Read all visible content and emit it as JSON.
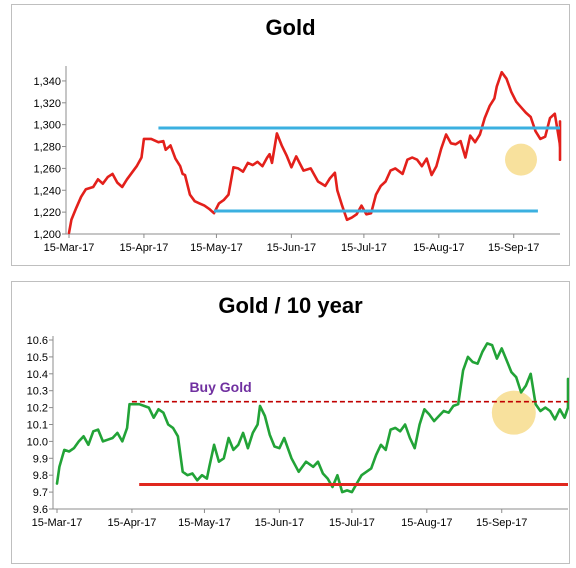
{
  "chart_data": [
    {
      "type": "line",
      "title": "Gold",
      "xlabel": "",
      "ylabel": "",
      "ylim": [
        1200,
        1350
      ],
      "yticks": [
        1200,
        1220,
        1240,
        1260,
        1280,
        1300,
        1320,
        1340
      ],
      "ytick_labels": [
        "1,200",
        "1,220",
        "1,240",
        "1,260",
        "1,280",
        "1,300",
        "1,320",
        "1,340"
      ],
      "x_start": "15-Mar-17",
      "x_end": "30-Sep-17",
      "xtick_labels": [
        "15-Mar-17",
        "15-Apr-17",
        "15-May-17",
        "15-Jun-17",
        "15-Jul-17",
        "15-Aug-17",
        "15-Sep-17"
      ],
      "grid": false,
      "series": [
        {
          "color": "#e3201b",
          "x": [
            "15-Mar-17",
            "16-Mar-17",
            "18-Mar-17",
            "20-Mar-17",
            "22-Mar-17",
            "25-Mar-17",
            "27-Mar-17",
            "29-Mar-17",
            "31-Mar-17",
            "02-Apr-17",
            "04-Apr-17",
            "06-Apr-17",
            "08-Apr-17",
            "10-Apr-17",
            "12-Apr-17",
            "14-Apr-17",
            "15-Apr-17",
            "18-Apr-17",
            "21-Apr-17",
            "23-Apr-17",
            "24-Apr-17",
            "26-Apr-17",
            "28-Apr-17",
            "30-Apr-17",
            "01-May-17",
            "02-May-17",
            "04-May-17",
            "06-May-17",
            "08-May-17",
            "10-May-17",
            "12-May-17",
            "14-May-17",
            "16-May-17",
            "18-May-17",
            "20-May-17",
            "22-May-17",
            "24-May-17",
            "26-May-17",
            "28-May-17",
            "30-May-17",
            "01-Jun-17",
            "03-Jun-17",
            "05-Jun-17",
            "06-Jun-17",
            "07-Jun-17",
            "09-Jun-17",
            "11-Jun-17",
            "13-Jun-17",
            "15-Jun-17",
            "17-Jun-17",
            "20-Jun-17",
            "23-Jun-17",
            "26-Jun-17",
            "29-Jun-17",
            "01-Jul-17",
            "03-Jul-17",
            "04-Jul-17",
            "06-Jul-17",
            "08-Jul-17",
            "10-Jul-17",
            "12-Jul-17",
            "14-Jul-17",
            "16-Jul-17",
            "18-Jul-17",
            "20-Jul-17",
            "22-Jul-17",
            "24-Jul-17",
            "26-Jul-17",
            "28-Jul-17",
            "31-Jul-17",
            "02-Aug-17",
            "04-Aug-17",
            "06-Aug-17",
            "08-Aug-17",
            "10-Aug-17",
            "12-Aug-17",
            "14-Aug-17",
            "16-Aug-17",
            "18-Aug-17",
            "20-Aug-17",
            "22-Aug-17",
            "24-Aug-17",
            "26-Aug-17",
            "28-Aug-17",
            "30-Aug-17",
            "01-Sep-17",
            "03-Sep-17",
            "05-Sep-17",
            "07-Sep-17",
            "08-Sep-17",
            "10-Sep-17",
            "12-Sep-17",
            "14-Sep-17",
            "16-Sep-17",
            "18-Sep-17",
            "20-Sep-17",
            "22-Sep-17",
            "24-Sep-17",
            "26-Sep-17",
            "28-Sep-17",
            "30-Sep-17",
            "02-Oct-17",
            "04-Oct-17",
            "06-Oct-17",
            "08-Oct-17",
            "10-Oct-17",
            "12-Oct-17",
            "14-Oct-17",
            "16-Oct-17",
            "18-Oct-17",
            "20-Oct-17",
            "22-Oct-17",
            "24-Oct-17",
            "26-Oct-17",
            "28-Oct-17",
            "30-Oct-17",
            "01-Nov-17"
          ],
          "values": [
            1201,
            1213,
            1224,
            1234,
            1241,
            1243,
            1250,
            1246,
            1252,
            1255,
            1247,
            1243,
            1250,
            1256,
            1262,
            1270,
            1287,
            1287,
            1284,
            1285,
            1277,
            1281,
            1269,
            1262,
            1255,
            1254,
            1236,
            1230,
            1228,
            1226,
            1223,
            1219,
            1228,
            1231,
            1236,
            1261,
            1260,
            1257,
            1265,
            1263,
            1266,
            1262,
            1270,
            1273,
            1265,
            1292,
            1281,
            1272,
            1261,
            1271,
            1258,
            1260,
            1248,
            1244,
            1251,
            1256,
            1240,
            1226,
            1213,
            1215,
            1218,
            1226,
            1218,
            1219,
            1236,
            1244,
            1248,
            1258,
            1260,
            1255,
            1268,
            1270,
            1268,
            1262,
            1269,
            1254,
            1262,
            1278,
            1291,
            1283,
            1282,
            1285,
            1270,
            1290,
            1284,
            1291,
            1306,
            1317,
            1324,
            1335,
            1348,
            1342,
            1330,
            1321,
            1316,
            1311,
            1307,
            1294,
            1287,
            1289,
            1306,
            1310,
            1283,
            1279,
            1272,
            1270,
            1275,
            1268,
            1277,
            1282,
            1289,
            1292,
            1301,
            1303,
            1302,
            1303,
            1303
          ]
        }
      ],
      "hlines": [
        {
          "value": 1297,
          "x_from": "21-Apr-17",
          "x_to": "01-Nov-17",
          "color": "#3bb0e0"
        },
        {
          "value": 1221,
          "x_from": "14-May-17",
          "x_to": "25-Sep-17",
          "color": "#3bb0e0"
        }
      ],
      "highlight": {
        "x": "18-Sep-17",
        "y": 1268,
        "color": "#f7dc8c"
      }
    },
    {
      "type": "line",
      "title": "Gold / 10 year",
      "xlabel": "",
      "ylabel": "",
      "ylim": [
        9.6,
        10.6
      ],
      "yticks": [
        9.6,
        9.7,
        9.8,
        9.9,
        10.0,
        10.1,
        10.2,
        10.3,
        10.4,
        10.5,
        10.6
      ],
      "ytick_labels": [
        "9.6",
        "9.7",
        "9.8",
        "9.9",
        "10.0",
        "10.1",
        "10.2",
        "10.3",
        "10.4",
        "10.5",
        "10.6"
      ],
      "x_start": "15-Mar-17",
      "x_end": "30-Sep-17",
      "xtick_labels": [
        "15-Mar-17",
        "15-Apr-17",
        "15-May-17",
        "15-Jun-17",
        "15-Jul-17",
        "15-Aug-17",
        "15-Sep-17"
      ],
      "grid": false,
      "series": [
        {
          "color": "#22a337",
          "x": [
            "15-Mar-17",
            "16-Mar-17",
            "18-Mar-17",
            "20-Mar-17",
            "22-Mar-17",
            "24-Mar-17",
            "26-Mar-17",
            "28-Mar-17",
            "30-Mar-17",
            "01-Apr-17",
            "03-Apr-17",
            "05-Apr-17",
            "07-Apr-17",
            "09-Apr-17",
            "11-Apr-17",
            "13-Apr-17",
            "14-Apr-17",
            "18-Apr-17",
            "20-Apr-17",
            "22-Apr-17",
            "24-Apr-17",
            "26-Apr-17",
            "28-Apr-17",
            "30-Apr-17",
            "02-May-17",
            "04-May-17",
            "06-May-17",
            "08-May-17",
            "10-May-17",
            "12-May-17",
            "14-May-17",
            "16-May-17",
            "17-May-17",
            "19-May-17",
            "21-May-17",
            "23-May-17",
            "25-May-17",
            "27-May-17",
            "29-May-17",
            "31-May-17",
            "02-Jun-17",
            "04-Jun-17",
            "06-Jun-17",
            "07-Jun-17",
            "09-Jun-17",
            "11-Jun-17",
            "13-Jun-17",
            "15-Jun-17",
            "17-Jun-17",
            "20-Jun-17",
            "23-Jun-17",
            "26-Jun-17",
            "29-Jun-17",
            "01-Jul-17",
            "03-Jul-17",
            "05-Jul-17",
            "07-Jul-17",
            "09-Jul-17",
            "11-Jul-17",
            "13-Jul-17",
            "15-Jul-17",
            "17-Jul-17",
            "19-Jul-17",
            "21-Jul-17",
            "23-Jul-17",
            "25-Jul-17",
            "27-Jul-17",
            "29-Jul-17",
            "31-Jul-17",
            "02-Aug-17",
            "04-Aug-17",
            "06-Aug-17",
            "08-Aug-17",
            "10-Aug-17",
            "12-Aug-17",
            "14-Aug-17",
            "16-Aug-17",
            "18-Aug-17",
            "20-Aug-17",
            "22-Aug-17",
            "24-Aug-17",
            "26-Aug-17",
            "28-Aug-17",
            "30-Aug-17",
            "01-Sep-17",
            "03-Sep-17",
            "05-Sep-17",
            "07-Sep-17",
            "09-Sep-17",
            "11-Sep-17",
            "13-Sep-17",
            "15-Sep-17",
            "17-Sep-17",
            "19-Sep-17",
            "21-Sep-17",
            "23-Sep-17",
            "25-Sep-17",
            "27-Sep-17",
            "29-Sep-17",
            "01-Oct-17",
            "03-Oct-17",
            "05-Oct-17",
            "07-Oct-17",
            "09-Oct-17",
            "11-Oct-17",
            "13-Oct-17",
            "15-Oct-17",
            "17-Oct-17",
            "19-Oct-17",
            "21-Oct-17",
            "23-Oct-17",
            "25-Oct-17",
            "27-Oct-17",
            "29-Oct-17",
            "31-Oct-17"
          ],
          "values": [
            9.75,
            9.85,
            9.95,
            9.94,
            9.96,
            10.0,
            10.03,
            9.98,
            10.06,
            10.07,
            10.0,
            10.01,
            10.02,
            10.05,
            10.0,
            10.08,
            10.22,
            10.22,
            10.21,
            10.2,
            10.14,
            10.19,
            10.17,
            10.1,
            10.08,
            10.03,
            9.82,
            9.8,
            9.81,
            9.77,
            9.8,
            9.78,
            9.85,
            9.98,
            9.88,
            9.9,
            10.02,
            9.95,
            9.98,
            10.05,
            9.96,
            10.05,
            10.1,
            10.21,
            10.15,
            10.04,
            9.97,
            9.96,
            10.02,
            9.9,
            9.82,
            9.88,
            9.85,
            9.88,
            9.81,
            9.78,
            9.73,
            9.8,
            9.7,
            9.71,
            9.7,
            9.75,
            9.8,
            9.82,
            9.84,
            9.92,
            9.98,
            9.95,
            10.07,
            10.08,
            10.06,
            10.1,
            10.02,
            9.96,
            10.1,
            10.19,
            10.16,
            10.12,
            10.15,
            10.18,
            10.17,
            10.21,
            10.22,
            10.42,
            10.5,
            10.47,
            10.46,
            10.53,
            10.58,
            10.57,
            10.49,
            10.55,
            10.48,
            10.41,
            10.38,
            10.29,
            10.33,
            10.4,
            10.22,
            10.18,
            10.2,
            10.18,
            10.13,
            10.19,
            10.14,
            10.2,
            10.24,
            10.27,
            10.3,
            10.34,
            10.37,
            10.37,
            10.37,
            10.37,
            10.37
          ]
        }
      ],
      "hlines": [
        {
          "value": 10.235,
          "x_from": "15-Apr-17",
          "x_to": "01-Nov-17",
          "color": "#c00000",
          "style": "dashed"
        },
        {
          "value": 9.745,
          "x_from": "18-Apr-17",
          "x_to": "10-Nov-17",
          "color": "#e0281e",
          "style": "solid"
        }
      ],
      "annotations": [
        {
          "text": "Buy Gold",
          "x": "15-May-17",
          "y": 10.27,
          "color": "#7030a0"
        }
      ],
      "highlight": {
        "x": "20-Sep-17",
        "y": 10.17,
        "color": "#f7dc8c"
      }
    }
  ]
}
